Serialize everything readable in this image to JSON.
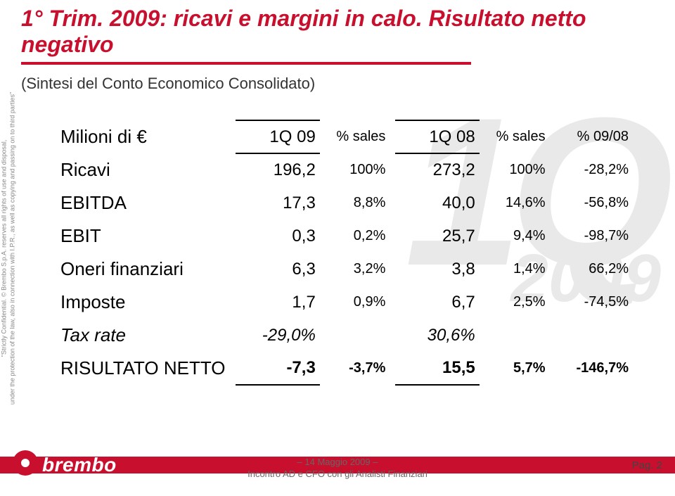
{
  "colors": {
    "accent": "#c8102e",
    "wm": "#e6e6e6",
    "text": "#000000",
    "footer_text": "#666666"
  },
  "title_line1": "1° Trim. 2009: ricavi e margini in calo. Risultato netto negativo",
  "subtitle": "(Sintesi del Conto Economico Consolidato)",
  "confidential_l1": "\"Strictly Confidential. © Brembo S.p.A. reserves all rights of use and disposal,",
  "confidential_l2": "under the protection of the law, also in connection with I.P.R., as well as copying and passing on to third parties\"",
  "watermark": {
    "quarter": "1Q",
    "year": "2009"
  },
  "table": {
    "header": {
      "label": "Milioni di €",
      "c1": "1Q 09",
      "p1": "% sales",
      "c2": "1Q 08",
      "p2": "% sales",
      "d": "% 09/08"
    },
    "rows": [
      {
        "label": "Ricavi",
        "v1": "196,2",
        "p1": "100%",
        "v2": "273,2",
        "p2": "100%",
        "d": "-28,2%",
        "italic": false,
        "bold": false
      },
      {
        "label": "EBITDA",
        "v1": "17,3",
        "p1": "8,8%",
        "v2": "40,0",
        "p2": "14,6%",
        "d": "-56,8%",
        "italic": false,
        "bold": false
      },
      {
        "label": "EBIT",
        "v1": "0,3",
        "p1": "0,2%",
        "v2": "25,7",
        "p2": "9,4%",
        "d": "-98,7%",
        "italic": false,
        "bold": false
      },
      {
        "label": "Oneri finanziari",
        "v1": "6,3",
        "p1": "3,2%",
        "v2": "3,8",
        "p2": "1,4%",
        "d": "66,2%",
        "italic": false,
        "bold": false
      },
      {
        "label": "Imposte",
        "v1": "1,7",
        "p1": "0,9%",
        "v2": "6,7",
        "p2": "2,5%",
        "d": "-74,5%",
        "italic": false,
        "bold": false
      },
      {
        "label": "Tax rate",
        "v1": "-29,0%",
        "p1": "",
        "v2": "30,6%",
        "p2": "",
        "d": "",
        "italic": true,
        "bold": false
      },
      {
        "label": "RISULTATO NETTO",
        "v1": "-7,3",
        "p1": "-3,7%",
        "v2": "15,5",
        "p2": "5,7%",
        "d": "-146,7%",
        "italic": false,
        "bold": true
      }
    ]
  },
  "footer": {
    "brand": "brembo",
    "date": "– 14 Maggio 2009 –",
    "event": "Incontro AD e CFO con gli Analisti Finanziari",
    "page": "Pag. 2"
  }
}
